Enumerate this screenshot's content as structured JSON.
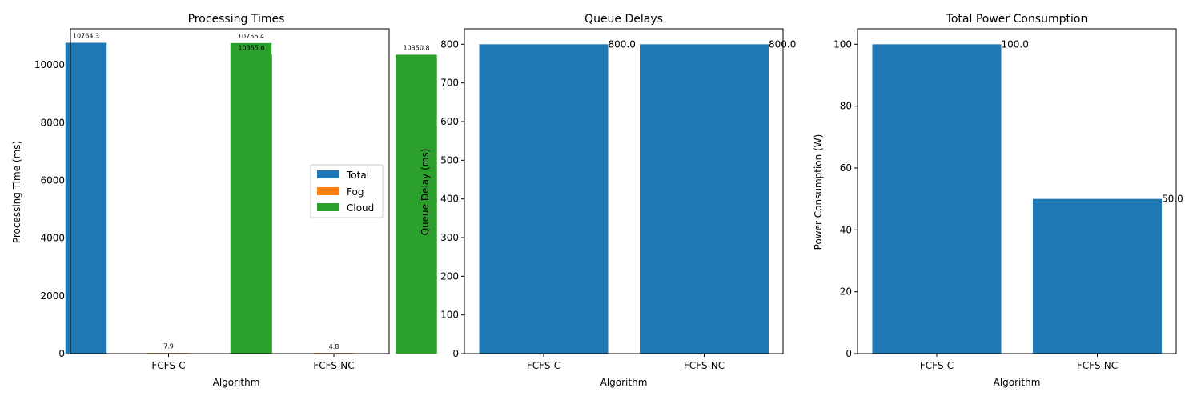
{
  "colors": {
    "total": "#1f77b4",
    "fog": "#ff7f0e",
    "cloud": "#2ca02c"
  },
  "chart_data": [
    {
      "type": "bar",
      "title": "Processing Times",
      "xlabel": "Algorithm",
      "ylabel": "Processing Time (ms)",
      "categories": [
        "FCFS-C",
        "FCFS-NC"
      ],
      "ylim": [
        0,
        11250
      ],
      "yticks": [
        0,
        2000,
        4000,
        6000,
        8000,
        10000
      ],
      "legend_position": "center-right",
      "series": [
        {
          "name": "Total",
          "values": [
            10764.3,
            10355.6
          ],
          "labels": [
            "10764.3",
            "10355.6"
          ],
          "color": "#1f77b4"
        },
        {
          "name": "Fog",
          "values": [
            7.9,
            4.8
          ],
          "labels": [
            "7.9",
            "4.8"
          ],
          "color": "#ff7f0e"
        },
        {
          "name": "Cloud",
          "values": [
            10756.4,
            10350.8
          ],
          "labels": [
            "10756.4",
            "10350.8"
          ],
          "color": "#2ca02c"
        }
      ]
    },
    {
      "type": "bar",
      "title": "Queue Delays",
      "xlabel": "Algorithm",
      "ylabel": "Queue Delay (ms)",
      "categories": [
        "FCFS-C",
        "FCFS-NC"
      ],
      "ylim": [
        0,
        840
      ],
      "yticks": [
        0,
        100,
        200,
        300,
        400,
        500,
        600,
        700,
        800
      ],
      "series": [
        {
          "values": [
            800.0,
            800.0
          ],
          "labels": [
            "800.0",
            "800.0"
          ],
          "color": "#1f77b4"
        }
      ]
    },
    {
      "type": "bar",
      "title": "Total Power Consumption",
      "xlabel": "Algorithm",
      "ylabel": "Power Consumption (W)",
      "categories": [
        "FCFS-C",
        "FCFS-NC"
      ],
      "ylim": [
        0,
        105
      ],
      "yticks": [
        0,
        20,
        40,
        60,
        80,
        100
      ],
      "series": [
        {
          "values": [
            100.0,
            50.0
          ],
          "labels": [
            "100.0",
            "50.0"
          ],
          "color": "#1f77b4"
        }
      ]
    }
  ]
}
